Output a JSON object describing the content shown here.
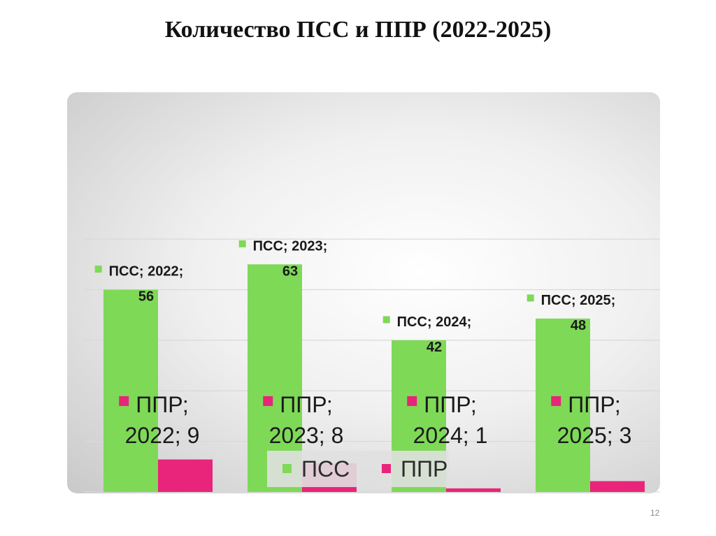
{
  "slide": {
    "title": "Количество ПСС и ППР (2022-2025)",
    "page_number": "12"
  },
  "colors": {
    "pss": "#7ed957",
    "ppr": "#e8257a",
    "grid": "#d9d9d9"
  },
  "chart_data": {
    "type": "bar",
    "categories": [
      "2022",
      "2023",
      "2024",
      "2025"
    ],
    "series": [
      {
        "name": "ПСС",
        "values": [
          56,
          63,
          42,
          48
        ]
      },
      {
        "name": "ППР",
        "values": [
          9,
          8,
          1,
          3
        ]
      }
    ],
    "data_labels": [
      [
        "ПСС; 2022;",
        "56"
      ],
      [
        "ПСС; 2023;",
        "63"
      ],
      [
        "ПСС; 2024;",
        "42"
      ],
      [
        "ПСС; 2025;",
        "48"
      ],
      [
        "ППР;",
        "2022; 9"
      ],
      [
        "ППР;",
        "2023; 8"
      ],
      [
        "ППР;",
        "2024; 1"
      ],
      [
        "ППР;",
        "2025; 3"
      ]
    ],
    "legend": [
      "ПСС",
      "ППР"
    ],
    "legend_position": "bottom",
    "ylim": [
      0,
      70
    ],
    "grid": true
  }
}
